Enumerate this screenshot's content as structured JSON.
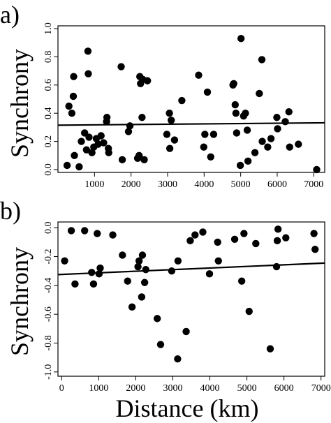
{
  "chart_data": [
    {
      "type": "scatter",
      "panel_label": "a)",
      "ylabel": "Synchrony",
      "xlabel": "",
      "xlim": [
        0,
        7300
      ],
      "ylim": [
        -0.02,
        1.02
      ],
      "xticks": [
        1000,
        2000,
        3000,
        4000,
        5000,
        6000,
        7000
      ],
      "yticks": [
        0.0,
        0.2,
        0.4,
        0.6,
        0.8,
        1.0
      ],
      "ytick_labels": [
        "0.0",
        "0.2",
        "0.4",
        "0.6",
        "0.8",
        "1.0"
      ],
      "trend_line": {
        "x": [
          0,
          7300
        ],
        "y": [
          0.315,
          0.332
        ]
      },
      "points": [
        [
          250,
          0.03
        ],
        [
          300,
          0.45
        ],
        [
          380,
          0.4
        ],
        [
          420,
          0.52
        ],
        [
          430,
          0.66
        ],
        [
          450,
          0.1
        ],
        [
          580,
          0.02
        ],
        [
          640,
          0.2
        ],
        [
          730,
          0.26
        ],
        [
          780,
          0.14
        ],
        [
          820,
          0.84
        ],
        [
          830,
          0.68
        ],
        [
          850,
          0.23
        ],
        [
          930,
          0.12
        ],
        [
          980,
          0.16
        ],
        [
          1050,
          0.22
        ],
        [
          1100,
          0.18
        ],
        [
          1180,
          0.24
        ],
        [
          1250,
          0.19
        ],
        [
          1330,
          0.34
        ],
        [
          1340,
          0.37
        ],
        [
          1380,
          0.15
        ],
        [
          1390,
          0.12
        ],
        [
          1730,
          0.73
        ],
        [
          1760,
          0.07
        ],
        [
          1930,
          0.27
        ],
        [
          1970,
          0.31
        ],
        [
          2180,
          0.08
        ],
        [
          2220,
          0.1
        ],
        [
          2240,
          0.66
        ],
        [
          2260,
          0.61
        ],
        [
          2300,
          0.37
        ],
        [
          2320,
          0.64
        ],
        [
          2360,
          0.07
        ],
        [
          2450,
          0.63
        ],
        [
          2980,
          0.25
        ],
        [
          3050,
          0.4
        ],
        [
          3060,
          0.15
        ],
        [
          3100,
          0.35
        ],
        [
          3190,
          0.21
        ],
        [
          3390,
          0.49
        ],
        [
          3850,
          0.67
        ],
        [
          3990,
          0.16
        ],
        [
          4020,
          0.25
        ],
        [
          4090,
          0.55
        ],
        [
          4180,
          0.09
        ],
        [
          4260,
          0.25
        ],
        [
          4790,
          0.6
        ],
        [
          4810,
          0.61
        ],
        [
          4850,
          0.46
        ],
        [
          4870,
          0.4
        ],
        [
          4890,
          0.26
        ],
        [
          4990,
          0.03
        ],
        [
          5010,
          0.93
        ],
        [
          5080,
          0.38
        ],
        [
          5130,
          0.4
        ],
        [
          5180,
          0.28
        ],
        [
          5200,
          0.06
        ],
        [
          5390,
          0.12
        ],
        [
          5510,
          0.54
        ],
        [
          5580,
          0.78
        ],
        [
          5590,
          0.2
        ],
        [
          5740,
          0.16
        ],
        [
          5830,
          0.22
        ],
        [
          5990,
          0.37
        ],
        [
          6010,
          0.29
        ],
        [
          6220,
          0.34
        ],
        [
          6320,
          0.41
        ],
        [
          6340,
          0.16
        ],
        [
          6580,
          0.18
        ],
        [
          7080,
          0.0
        ]
      ]
    },
    {
      "type": "scatter",
      "panel_label": "b)",
      "ylabel": "Synchrony",
      "xlabel": "Distance (km)",
      "xlim": [
        -100,
        7100
      ],
      "ylim": [
        -1.03,
        0.04
      ],
      "xticks": [
        0,
        1000,
        2000,
        3000,
        4000,
        5000,
        6000,
        7000
      ],
      "yticks": [
        0.0,
        -0.2,
        -0.4,
        -0.6,
        -0.8,
        -1.0
      ],
      "ytick_labels": [
        "0.0",
        "-0.2",
        "-0.4",
        "-0.6",
        "-0.8",
        "-1.0"
      ],
      "trend_line": {
        "x": [
          -100,
          7100
        ],
        "y": [
          -0.325,
          -0.245
        ]
      },
      "points": [
        [
          80,
          -0.23
        ],
        [
          260,
          -0.02
        ],
        [
          360,
          -0.39
        ],
        [
          620,
          -0.02
        ],
        [
          810,
          -0.31
        ],
        [
          860,
          -0.39
        ],
        [
          960,
          -0.04
        ],
        [
          1010,
          -0.32
        ],
        [
          1040,
          -0.28
        ],
        [
          1380,
          -0.05
        ],
        [
          1640,
          -0.19
        ],
        [
          1780,
          -0.37
        ],
        [
          1900,
          -0.55
        ],
        [
          2060,
          -0.27
        ],
        [
          2090,
          -0.23
        ],
        [
          2160,
          -0.48
        ],
        [
          2180,
          -0.19
        ],
        [
          2240,
          -0.38
        ],
        [
          2270,
          -0.29
        ],
        [
          2580,
          -0.63
        ],
        [
          2670,
          -0.81
        ],
        [
          2970,
          -0.3
        ],
        [
          3130,
          -0.91
        ],
        [
          3140,
          -0.23
        ],
        [
          3360,
          -0.72
        ],
        [
          3470,
          -0.09
        ],
        [
          3600,
          -0.05
        ],
        [
          3810,
          -0.03
        ],
        [
          3990,
          -0.32
        ],
        [
          4210,
          -0.1
        ],
        [
          4230,
          -0.23
        ],
        [
          4670,
          -0.08
        ],
        [
          4860,
          -0.37
        ],
        [
          4920,
          -0.04
        ],
        [
          5060,
          -0.58
        ],
        [
          5240,
          -0.11
        ],
        [
          5630,
          -0.84
        ],
        [
          5800,
          -0.27
        ],
        [
          5820,
          -0.09
        ],
        [
          5840,
          -0.01
        ],
        [
          6050,
          -0.07
        ],
        [
          6810,
          -0.04
        ],
        [
          6840,
          -0.15
        ]
      ]
    }
  ]
}
